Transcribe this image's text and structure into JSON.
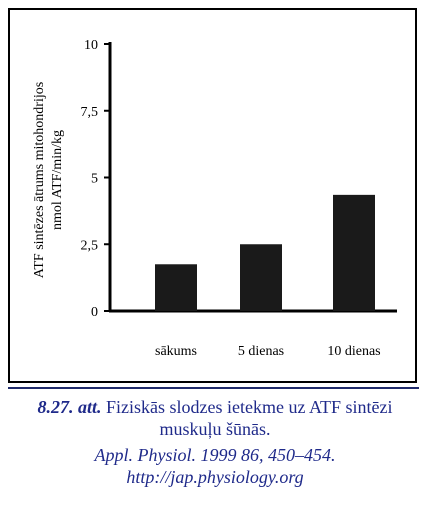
{
  "chart_data": {
    "type": "bar",
    "categories": [
      "sākums",
      "5 dienas",
      "10 dienas"
    ],
    "values": [
      1.75,
      2.5,
      4.35
    ],
    "ylabel_line1": "ATF sintēzes ātrums mitohondrijos",
    "ylabel_line2": "nmol ATF/min/kg",
    "ylim": [
      0,
      10
    ],
    "yticks": [
      "0",
      "2,5",
      "5",
      "7,5",
      "10"
    ],
    "ytick_values": [
      0,
      2.5,
      5,
      7.5,
      10
    ],
    "grid": false,
    "bar_color": "#1a1a1a"
  },
  "caption": {
    "number": "8.27. att.",
    "text_line1": "Fiziskās slodzes ietekme uz ATF sintēzi",
    "text_line2": "muskuļu šūnās.",
    "source_line1": "Appl. Physiol. 1999 86, 450–454.",
    "source_line2": "http://jap.physiology.org"
  },
  "colors": {
    "caption_text": "#1f2a8a",
    "rule": "#1f2a6b"
  }
}
